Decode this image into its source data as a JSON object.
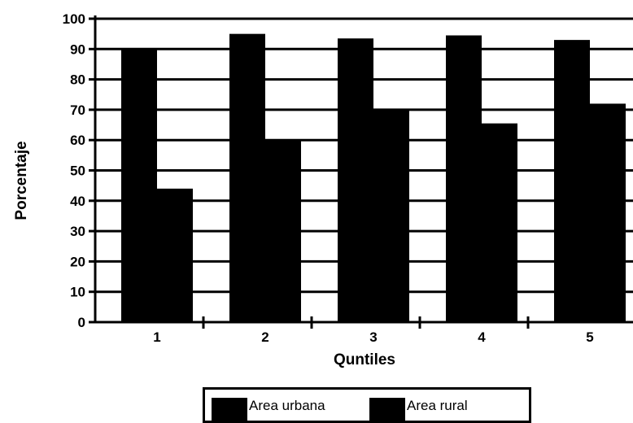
{
  "chart_data": {
    "type": "bar",
    "title": "",
    "xlabel": "Quntiles",
    "ylabel": "Porcentaje",
    "ylim": [
      0,
      100
    ],
    "yticks": [
      "0",
      "10",
      "20",
      "30",
      "40",
      "50",
      "60",
      "70",
      "80",
      "90",
      "100"
    ],
    "categories": [
      "1",
      "2",
      "3",
      "4",
      "5"
    ],
    "series": [
      {
        "name": "Area urbana",
        "color": "#000000",
        "values": [
          90,
          95,
          93.5,
          94.5,
          93
        ]
      },
      {
        "name": "Area rural",
        "color": "#000000",
        "values": [
          44,
          60,
          70,
          65.5,
          72
        ]
      }
    ],
    "grid": true,
    "legend_position": "bottom-center"
  }
}
